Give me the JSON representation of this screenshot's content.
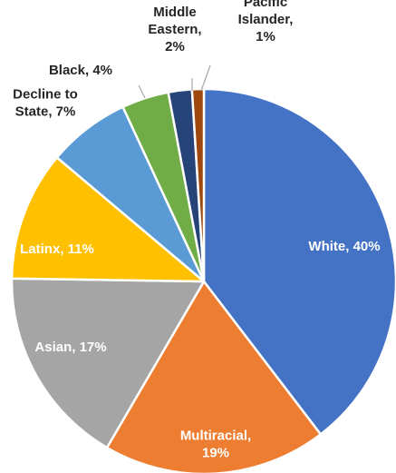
{
  "chart_data": {
    "type": "pie",
    "title": "",
    "labels": [
      "White",
      "Multiracial",
      "Asian",
      "Latinx",
      "Decline to State",
      "Black",
      "Middle Eastern",
      "Pacific Islander"
    ],
    "values": [
      40,
      19,
      17,
      11,
      7,
      4,
      2,
      1
    ],
    "colors": [
      "#4472C4",
      "#ED7D31",
      "#A5A5A5",
      "#FFC000",
      "#5B9BD5",
      "#70AD47",
      "#264478",
      "#9E480E"
    ],
    "start_angle_deg": 0,
    "direction": "clockwise",
    "data_labels": [
      {
        "lines": [
          "White, 40%"
        ],
        "placement": "inside",
        "color": "#ffffff"
      },
      {
        "lines": [
          "Multiracial,",
          "19%"
        ],
        "placement": "inside",
        "color": "#ffffff"
      },
      {
        "lines": [
          "Asian, 17%"
        ],
        "placement": "inside",
        "color": "#ffffff"
      },
      {
        "lines": [
          "Latinx, 11%"
        ],
        "placement": "inside",
        "color": "#ffffff"
      },
      {
        "lines": [
          "Decline to",
          "State, 7%"
        ],
        "placement": "outside",
        "color": "#262626"
      },
      {
        "lines": [
          "Black, 4%"
        ],
        "placement": "outside",
        "color": "#262626"
      },
      {
        "lines": [
          "Middle",
          "Eastern,",
          "2%"
        ],
        "placement": "outside",
        "color": "#262626"
      },
      {
        "lines": [
          "Pacific",
          "Islander,",
          "1%"
        ],
        "placement": "outside",
        "color": "#262626"
      }
    ],
    "legend": "none"
  }
}
